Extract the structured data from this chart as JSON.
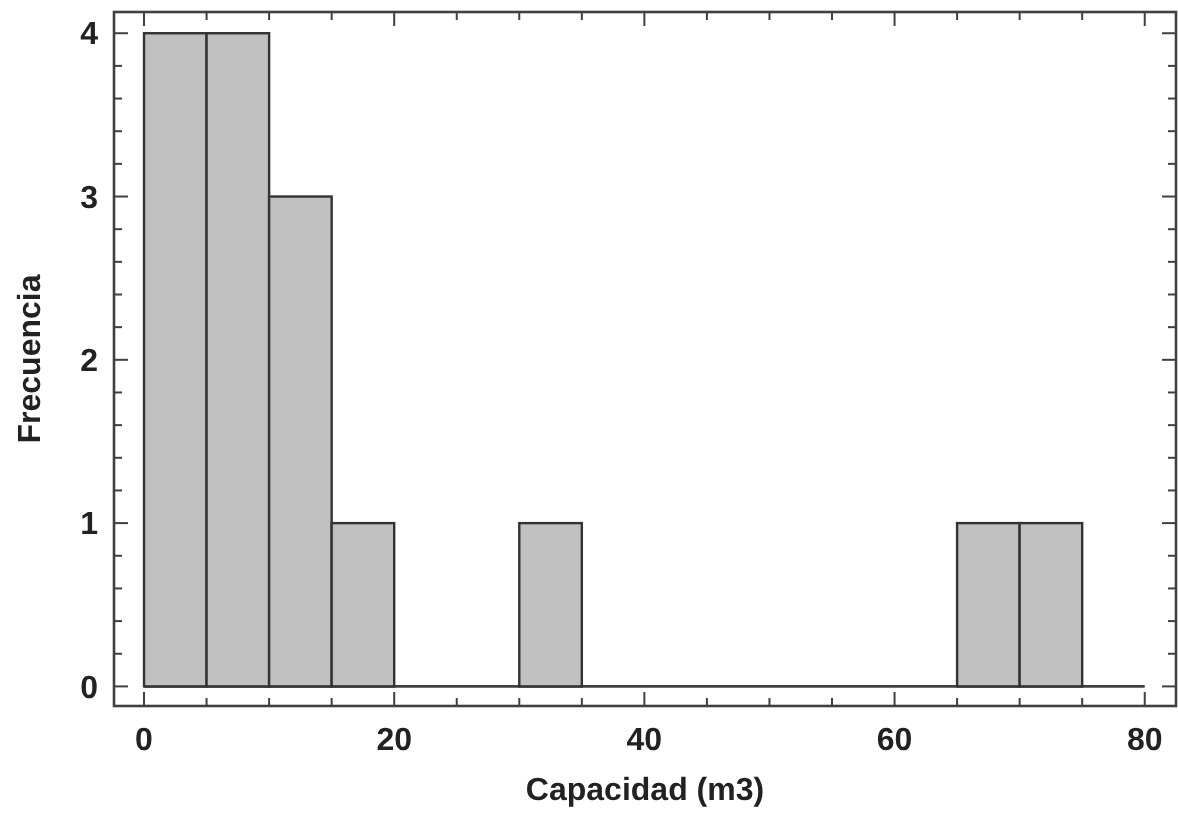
{
  "chart_data": {
    "type": "histogram",
    "xlabel": "Capacidad (m3)",
    "ylabel": "Frecuencia",
    "bins": [
      0,
      5,
      10,
      15,
      20,
      25,
      30,
      35,
      40,
      45,
      50,
      55,
      60,
      65,
      70,
      75
    ],
    "values": [
      4,
      4,
      3,
      1,
      0,
      0,
      1,
      0,
      0,
      0,
      0,
      0,
      0,
      1,
      1
    ],
    "color": "#c0c0c0",
    "xlim": [
      -2.4,
      82.5
    ],
    "xticks": [
      0,
      {
        "value": 5,
        "label": null
      },
      {
        "value": 10,
        "label": null
      },
      {
        "value": 15,
        "label": null
      },
      20,
      {
        "value": 25,
        "label": null
      },
      {
        "value": 30,
        "label": null
      },
      {
        "value": 35,
        "label": null
      },
      40,
      {
        "value": 45,
        "label": null
      },
      {
        "value": 50,
        "label": null
      },
      {
        "value": 55,
        "label": null
      },
      60,
      {
        "value": 65,
        "label": null
      },
      {
        "value": 70,
        "label": null
      },
      {
        "value": 75,
        "label": null
      },
      80
    ],
    "ylim": [
      -0.12,
      4.13
    ],
    "yticks": [
      0,
      {
        "value": 0.2,
        "label": null
      },
      {
        "value": 0.4,
        "label": null
      },
      {
        "value": 0.6,
        "label": null
      },
      {
        "value": 0.8,
        "label": null
      },
      1,
      {
        "value": 1.2,
        "label": null
      },
      {
        "value": 1.4,
        "label": null
      },
      {
        "value": 1.6,
        "label": null
      },
      {
        "value": 1.8,
        "label": null
      },
      2,
      {
        "value": 2.2,
        "label": null
      },
      {
        "value": 2.4,
        "label": null
      },
      {
        "value": 2.6,
        "label": null
      },
      {
        "value": 2.8,
        "label": null
      },
      3,
      {
        "value": 3.2,
        "label": null
      },
      {
        "value": 3.4,
        "label": null
      },
      {
        "value": 3.6,
        "label": null
      },
      {
        "value": 3.8,
        "label": null
      },
      4
    ]
  }
}
